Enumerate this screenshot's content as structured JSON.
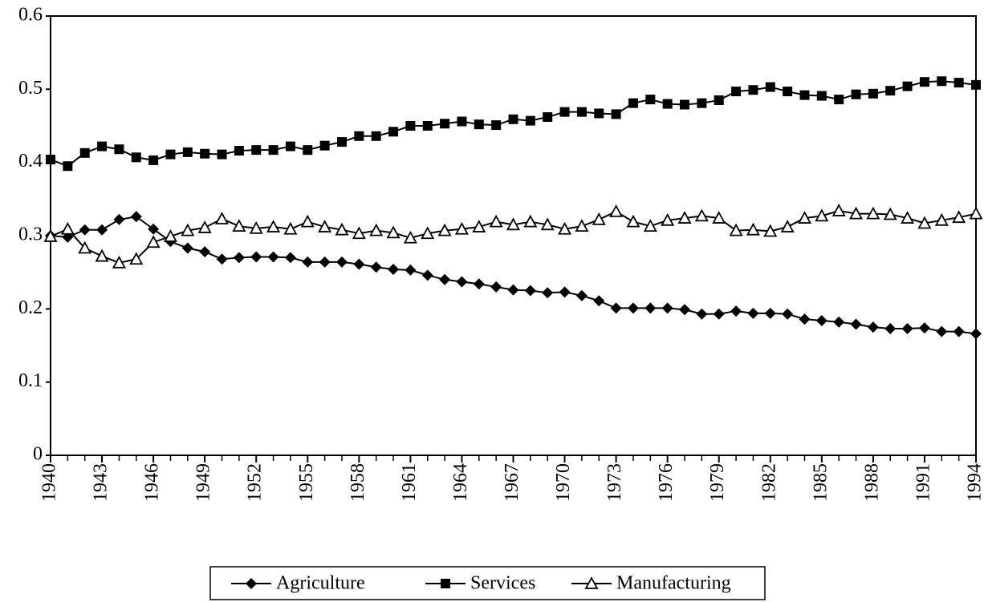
{
  "chart_data": {
    "type": "line",
    "x": [
      1940,
      1941,
      1942,
      1943,
      1944,
      1945,
      1946,
      1947,
      1948,
      1949,
      1950,
      1951,
      1952,
      1953,
      1954,
      1955,
      1956,
      1957,
      1958,
      1959,
      1960,
      1961,
      1962,
      1963,
      1964,
      1965,
      1966,
      1967,
      1968,
      1969,
      1970,
      1971,
      1972,
      1973,
      1974,
      1975,
      1976,
      1977,
      1978,
      1979,
      1980,
      1981,
      1982,
      1983,
      1984,
      1985,
      1986,
      1987,
      1988,
      1989,
      1990,
      1991,
      1992,
      1993,
      1994
    ],
    "series": [
      {
        "name": "Agriculture",
        "color": "#000000",
        "marker": "diamond",
        "values": [
          0.3,
          0.298,
          0.308,
          0.308,
          0.322,
          0.326,
          0.309,
          0.292,
          0.283,
          0.278,
          0.268,
          0.27,
          0.271,
          0.271,
          0.27,
          0.264,
          0.264,
          0.264,
          0.261,
          0.257,
          0.254,
          0.253,
          0.246,
          0.24,
          0.237,
          0.234,
          0.23,
          0.226,
          0.225,
          0.222,
          0.223,
          0.218,
          0.211,
          0.201,
          0.201,
          0.201,
          0.201,
          0.199,
          0.193,
          0.193,
          0.197,
          0.194,
          0.194,
          0.193,
          0.186,
          0.184,
          0.182,
          0.179,
          0.175,
          0.173,
          0.173,
          0.174,
          0.169,
          0.169,
          0.166
        ]
      },
      {
        "name": "Services",
        "color": "#000000",
        "marker": "square",
        "values": [
          0.404,
          0.395,
          0.413,
          0.422,
          0.418,
          0.407,
          0.403,
          0.411,
          0.414,
          0.412,
          0.411,
          0.416,
          0.417,
          0.417,
          0.422,
          0.417,
          0.423,
          0.428,
          0.436,
          0.436,
          0.442,
          0.45,
          0.45,
          0.453,
          0.456,
          0.452,
          0.451,
          0.459,
          0.457,
          0.462,
          0.469,
          0.469,
          0.467,
          0.466,
          0.481,
          0.486,
          0.48,
          0.479,
          0.481,
          0.485,
          0.497,
          0.499,
          0.503,
          0.497,
          0.492,
          0.491,
          0.486,
          0.493,
          0.494,
          0.498,
          0.504,
          0.51,
          0.511,
          0.509,
          0.506
        ]
      },
      {
        "name": "Manufacturing",
        "color": "#000000",
        "marker": "triangle",
        "values": [
          0.299,
          0.309,
          0.283,
          0.272,
          0.263,
          0.268,
          0.291,
          0.299,
          0.307,
          0.311,
          0.323,
          0.313,
          0.31,
          0.312,
          0.309,
          0.319,
          0.312,
          0.308,
          0.303,
          0.307,
          0.304,
          0.297,
          0.303,
          0.307,
          0.309,
          0.312,
          0.319,
          0.315,
          0.319,
          0.315,
          0.309,
          0.313,
          0.322,
          0.333,
          0.319,
          0.313,
          0.321,
          0.324,
          0.327,
          0.324,
          0.307,
          0.308,
          0.306,
          0.312,
          0.324,
          0.327,
          0.334,
          0.33,
          0.33,
          0.329,
          0.324,
          0.317,
          0.321,
          0.325,
          0.33
        ]
      }
    ],
    "xlim": [
      1940,
      1994
    ],
    "xticks": [
      1940,
      1943,
      1946,
      1949,
      1952,
      1955,
      1958,
      1961,
      1964,
      1967,
      1970,
      1973,
      1976,
      1979,
      1982,
      1985,
      1988,
      1991,
      1994
    ],
    "ylim": [
      0,
      0.6
    ],
    "yticks": [
      0,
      0.1,
      0.2,
      0.3,
      0.4,
      0.5,
      0.6
    ],
    "grid": false,
    "legend": "bottom"
  }
}
